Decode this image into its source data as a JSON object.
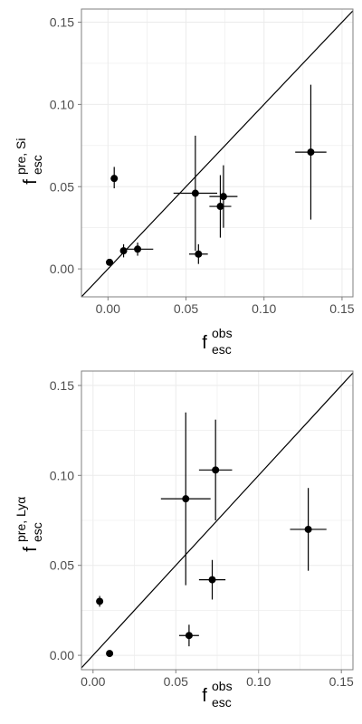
{
  "chart_data": [
    {
      "type": "scatter",
      "title": "",
      "xlabel": {
        "base": "f",
        "sup": "obs",
        "sub": "esc"
      },
      "ylabel": {
        "base": "f",
        "sup": "pre, Si",
        "sub": "esc"
      },
      "xlim": [
        -0.017,
        0.157
      ],
      "ylim": [
        -0.017,
        0.158
      ],
      "xticks": [
        0.0,
        0.05,
        0.1,
        0.15
      ],
      "yticks": [
        0.0,
        0.05,
        0.1,
        0.15
      ],
      "xtick_labels": [
        "0.00",
        "0.05",
        "0.10",
        "0.15"
      ],
      "ytick_labels": [
        "0.00",
        "0.05",
        "0.10",
        "0.15"
      ],
      "grid": true,
      "reference_line": "y = x",
      "points": [
        {
          "x": 0.001,
          "y": 0.004,
          "xerr": 0.0,
          "yerr_low": 0.0,
          "yerr_high": 0.0
        },
        {
          "x": 0.004,
          "y": 0.055,
          "xerr": 0.0,
          "yerr_low": 0.006,
          "yerr_high": 0.007
        },
        {
          "x": 0.01,
          "y": 0.011,
          "xerr": 0.0,
          "yerr_low": 0.004,
          "yerr_high": 0.004
        },
        {
          "x": 0.019,
          "y": 0.012,
          "xerr": 0.01,
          "yerr_low": 0.004,
          "yerr_high": 0.004
        },
        {
          "x": 0.056,
          "y": 0.046,
          "xerr": 0.014,
          "yerr_low": 0.035,
          "yerr_high": 0.035
        },
        {
          "x": 0.058,
          "y": 0.009,
          "xerr": 0.006,
          "yerr_low": 0.006,
          "yerr_high": 0.006
        },
        {
          "x": 0.072,
          "y": 0.038,
          "xerr": 0.007,
          "yerr_low": 0.019,
          "yerr_high": 0.019
        },
        {
          "x": 0.074,
          "y": 0.044,
          "xerr": 0.009,
          "yerr_low": 0.019,
          "yerr_high": 0.019
        },
        {
          "x": 0.13,
          "y": 0.071,
          "xerr": 0.01,
          "yerr_low": 0.041,
          "yerr_high": 0.041
        }
      ]
    },
    {
      "type": "scatter",
      "title": "",
      "xlabel": {
        "base": "f",
        "sup": "obs",
        "sub": "esc"
      },
      "ylabel": {
        "base": "f",
        "sup": "pre, Lyα",
        "sub": "esc"
      },
      "xlim": [
        -0.007,
        0.157
      ],
      "ylim": [
        -0.008,
        0.158
      ],
      "xticks": [
        0.0,
        0.05,
        0.1,
        0.15
      ],
      "yticks": [
        0.0,
        0.05,
        0.1,
        0.15
      ],
      "xtick_labels": [
        "0.00",
        "0.05",
        "0.10",
        "0.15"
      ],
      "ytick_labels": [
        "0.00",
        "0.05",
        "0.10",
        "0.15"
      ],
      "grid": true,
      "reference_line": "y = x",
      "points": [
        {
          "x": 0.004,
          "y": 0.03,
          "xerr": 0.0,
          "yerr_low": 0.003,
          "yerr_high": 0.003
        },
        {
          "x": 0.01,
          "y": 0.001,
          "xerr": 0.0,
          "yerr_low": 0.0,
          "yerr_high": 0.0
        },
        {
          "x": 0.058,
          "y": 0.011,
          "xerr": 0.006,
          "yerr_low": 0.006,
          "yerr_high": 0.006
        },
        {
          "x": 0.056,
          "y": 0.087,
          "xerr": 0.015,
          "yerr_low": 0.048,
          "yerr_high": 0.048
        },
        {
          "x": 0.074,
          "y": 0.103,
          "xerr": 0.01,
          "yerr_low": 0.028,
          "yerr_high": 0.028
        },
        {
          "x": 0.072,
          "y": 0.042,
          "xerr": 0.008,
          "yerr_low": 0.011,
          "yerr_high": 0.011
        },
        {
          "x": 0.13,
          "y": 0.07,
          "xerr": 0.011,
          "yerr_low": 0.023,
          "yerr_high": 0.023
        }
      ]
    }
  ]
}
